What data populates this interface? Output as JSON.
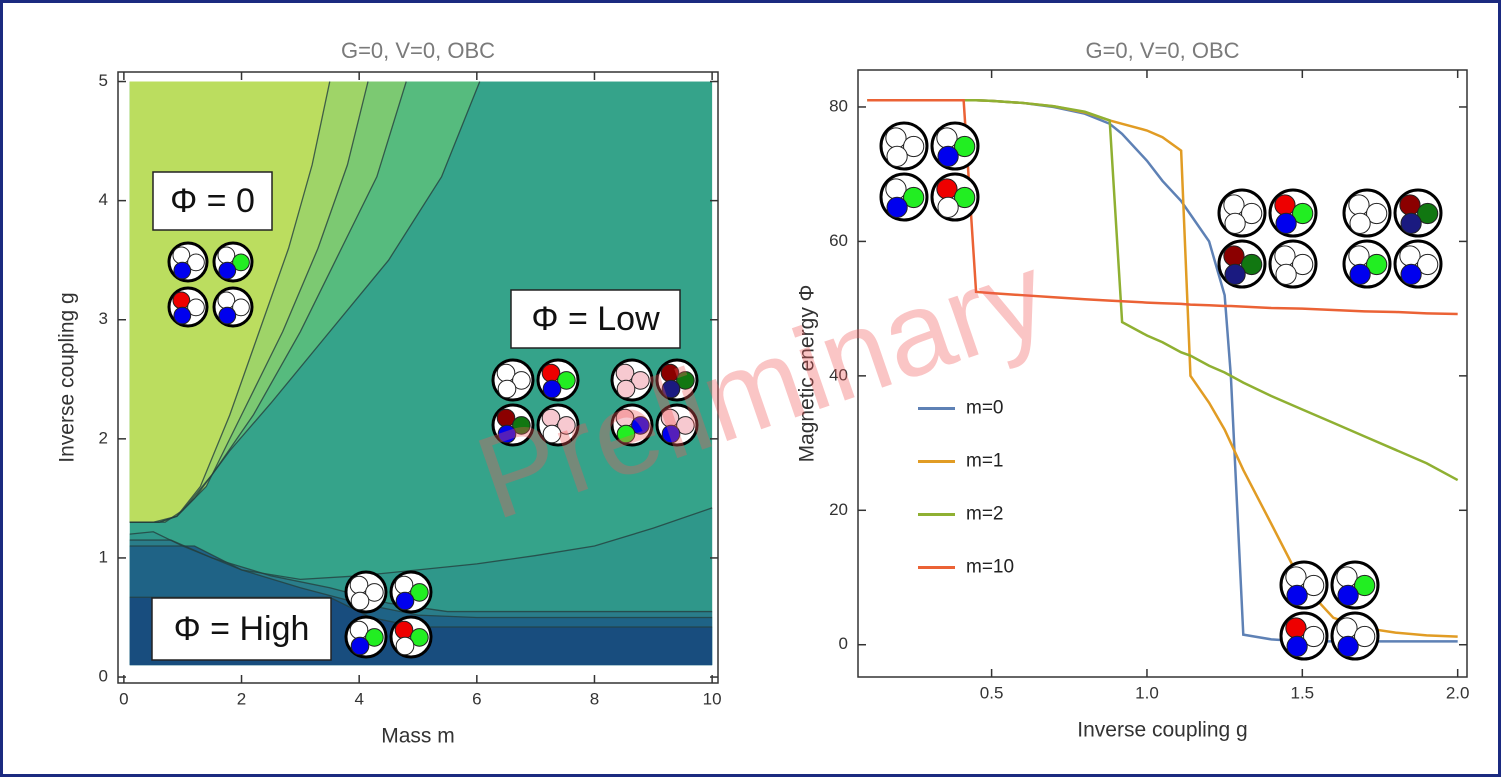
{
  "watermark": "Preliminary",
  "chart_data": [
    {
      "type": "contour",
      "title": "G=0, V=0, OBC",
      "xlabel": "Mass m",
      "ylabel": "Inverse coupling g",
      "xlim": [
        -0.1,
        10.1
      ],
      "ylim": [
        -0.05,
        5.08
      ],
      "xticks": [
        0,
        2,
        4,
        6,
        8,
        10
      ],
      "yticks": [
        0,
        1,
        2,
        3,
        4,
        5
      ],
      "data_xlim": [
        0.1,
        10
      ],
      "data_ylim": [
        0.1,
        5
      ],
      "base_color": "#35a38a",
      "annotations": [
        "Φ = 0",
        "Φ = Low",
        "Φ = High"
      ],
      "contours": [
        {
          "side": "upper",
          "color": "#56bb7e",
          "x": [
            6.05,
            5.4,
            4.5,
            3.5,
            2.5,
            1.8,
            1.2,
            0.9,
            0.6,
            0.1
          ],
          "values": [
            5,
            4.2,
            3.5,
            2.9,
            2.3,
            1.9,
            1.5,
            1.35,
            1.3,
            1.3
          ]
        },
        {
          "side": "upper",
          "color": "#7cc972",
          "x": [
            4.8,
            4.3,
            3.7,
            3.0,
            2.2,
            1.5,
            1.0,
            0.7,
            0.1
          ],
          "values": [
            5,
            4.2,
            3.6,
            2.9,
            2.2,
            1.7,
            1.4,
            1.3,
            1.3
          ]
        },
        {
          "side": "upper",
          "color": "#9fd468",
          "x": [
            4.15,
            3.8,
            3.3,
            2.7,
            2.0,
            1.4,
            0.9,
            0.6,
            0.1
          ],
          "values": [
            5,
            4.3,
            3.6,
            2.9,
            2.2,
            1.6,
            1.35,
            1.3,
            1.3
          ]
        },
        {
          "side": "upper",
          "color": "#bbdd5f",
          "x": [
            3.5,
            3.2,
            2.8,
            2.3,
            1.8,
            1.3,
            0.9,
            0.5,
            0.1
          ],
          "values": [
            5,
            4.3,
            3.6,
            2.9,
            2.2,
            1.6,
            1.35,
            1.3,
            1.3
          ]
        },
        {
          "side": "lower",
          "color": "#2f978a",
          "x": [
            0.1,
            0.5,
            1,
            2,
            3,
            4,
            5,
            6,
            7,
            8,
            9,
            10
          ],
          "values": [
            1.2,
            1.22,
            1.1,
            0.9,
            0.82,
            0.85,
            0.9,
            0.95,
            1.02,
            1.1,
            1.25,
            1.42
          ]
        },
        {
          "side": "lower",
          "color": "#2a7d8a",
          "x": [
            0.1,
            0.8,
            1.5,
            2.5,
            3.5,
            4.5,
            5.5,
            6,
            7,
            8,
            9,
            10
          ],
          "values": [
            1.15,
            1.15,
            1.0,
            0.85,
            0.75,
            0.62,
            0.55,
            0.55,
            0.55,
            0.55,
            0.55,
            0.55
          ]
        },
        {
          "side": "lower",
          "color": "#1f6386",
          "x": [
            0.1,
            1.2,
            2,
            3,
            4,
            5,
            6,
            10
          ],
          "values": [
            1.1,
            1.1,
            0.9,
            0.75,
            0.62,
            0.52,
            0.5,
            0.5
          ]
        },
        {
          "side": "lower",
          "color": "#184d7e",
          "x": [
            0.1,
            3.5,
            4.2,
            5,
            10
          ],
          "values": [
            0.67,
            0.67,
            0.5,
            0.42,
            0.42
          ]
        }
      ]
    },
    {
      "type": "line",
      "title": "G=0, V=0, OBC",
      "xlabel": "Inverse coupling g",
      "ylabel": "Magnetic energy Φ",
      "xlim": [
        0.07,
        2.03
      ],
      "ylim": [
        -4.8,
        85.5
      ],
      "xticks": [
        0.5,
        {
          "value": 1,
          "label": "1.0"
        },
        1.5,
        {
          "value": 2,
          "label": "2.0"
        }
      ],
      "yticks": [
        0,
        20,
        40,
        60,
        80
      ],
      "legend": "center-left",
      "x": [
        0.1,
        0.2,
        0.3,
        0.41,
        0.45,
        0.5,
        0.6,
        0.7,
        0.8,
        0.88,
        0.92,
        1.0,
        1.05,
        1.11,
        1.14,
        1.2,
        1.25,
        1.27,
        1.31,
        1.4,
        1.5,
        1.6,
        1.7,
        1.8,
        1.9,
        2.0
      ],
      "series": [
        {
          "name": "m=0",
          "color": "#5e81b5",
          "values": [
            81,
            81,
            81,
            81,
            81,
            80.9,
            80.6,
            80,
            79,
            77.5,
            76,
            72,
            69,
            66,
            64,
            60,
            52,
            40,
            1.5,
            0.8,
            0.5,
            0.5,
            0.5,
            0.5,
            0.5,
            0.5
          ]
        },
        {
          "name": "m=1",
          "color": "#e19c24",
          "values": [
            81,
            81,
            81,
            81,
            81,
            80.9,
            80.6,
            80.1,
            79.2,
            78,
            77.5,
            76.5,
            75.5,
            73.5,
            40,
            36,
            32,
            30,
            26,
            18,
            9,
            4,
            2.5,
            1.8,
            1.4,
            1.2
          ]
        },
        {
          "name": "m=2",
          "color": "#8fb032",
          "values": [
            81,
            81,
            81,
            81,
            81,
            80.9,
            80.6,
            80.1,
            79.3,
            78,
            48,
            46,
            45,
            43.5,
            43,
            41.5,
            40.5,
            40,
            39,
            37,
            35,
            33,
            31,
            29,
            27,
            24.5
          ]
        },
        {
          "name": "m=10",
          "color": "#eb6235",
          "values": [
            81,
            81,
            81,
            81,
            52.5,
            52.3,
            52,
            51.7,
            51.4,
            51.2,
            51.1,
            50.9,
            50.8,
            50.7,
            50.6,
            50.5,
            50.4,
            50.4,
            50.3,
            50.1,
            50,
            49.8,
            49.6,
            49.5,
            49.3,
            49.2
          ]
        }
      ]
    }
  ]
}
